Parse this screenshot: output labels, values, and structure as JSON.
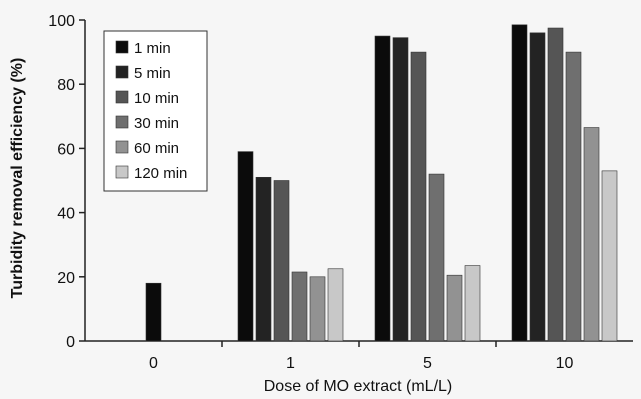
{
  "chart_data": {
    "type": "bar",
    "title": "",
    "xlabel": "Dose of MO extract (mL/L)",
    "ylabel": "Turbidity removal efficiency (%)",
    "ylim": [
      0,
      100
    ],
    "yticks": [
      "0",
      "20",
      "40",
      "60",
      "80",
      "100"
    ],
    "categories": [
      "0",
      "1",
      "5",
      "10"
    ],
    "series": [
      {
        "name": "1 min",
        "color": "#0b0b0b",
        "values": [
          18,
          59,
          95,
          98.5
        ]
      },
      {
        "name": "5 min",
        "color": "#232323",
        "values": [
          null,
          51,
          94.5,
          96
        ]
      },
      {
        "name": "10 min",
        "color": "#555555",
        "values": [
          null,
          50,
          90,
          97.5
        ]
      },
      {
        "name": "30 min",
        "color": "#6f6f6f",
        "values": [
          null,
          21.5,
          52,
          90
        ]
      },
      {
        "name": "60 min",
        "color": "#929292",
        "values": [
          null,
          20,
          20.5,
          66.5
        ]
      },
      {
        "name": "120 min",
        "color": "#c8c8c8",
        "values": [
          null,
          22.5,
          23.5,
          53
        ]
      }
    ],
    "grid": false,
    "legend_position": "top-left"
  }
}
